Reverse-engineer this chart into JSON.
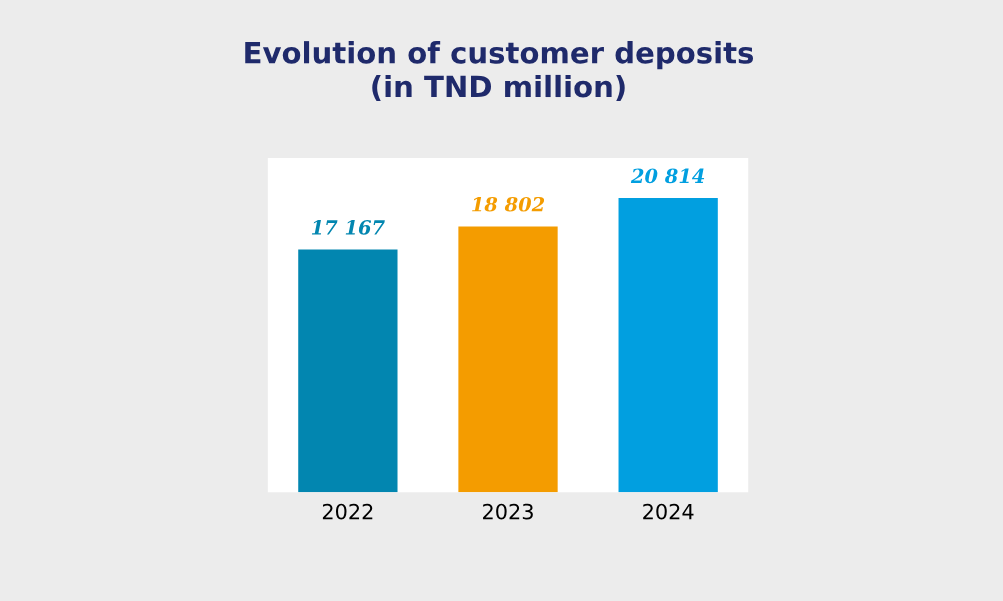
{
  "chart_data": {
    "type": "bar",
    "title": "Evolution of customer deposits\n(in TND million)",
    "categories": [
      "2022",
      "2023",
      "2024"
    ],
    "values": [
      17167,
      18802,
      20814
    ],
    "colors": [
      "#0286b0",
      "#f49c00",
      "#019fe0"
    ],
    "value_labels": [
      "17 167",
      "18 802",
      "20 814"
    ],
    "grid": false,
    "legend": false,
    "tick_labels": "x"
  }
}
